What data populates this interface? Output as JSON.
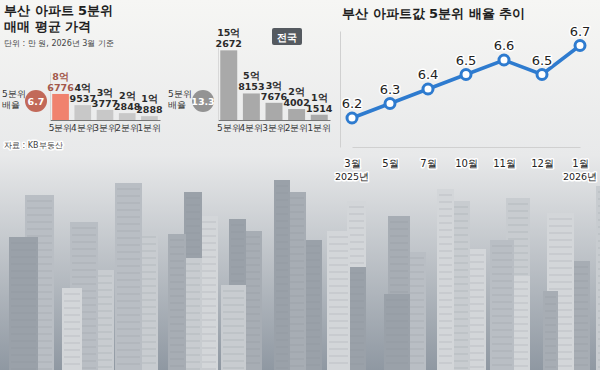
{
  "chart_data": [
    {
      "type": "bar",
      "title": "부산 아파트 5분위 매매 평균 가격",
      "subtitle": "단위 : 만 원, 2026년 3월 기준",
      "source": "자료 : KB부동산",
      "categories": [
        "5분위",
        "4분위",
        "3분위",
        "2분위",
        "1분위"
      ],
      "values": [
        86776,
        49537,
        33777,
        22848,
        12888
      ],
      "value_labels": [
        "8억 6776",
        "4억 9537",
        "3억 3777",
        "2억 2848",
        "1억 2888"
      ],
      "colors": [
        "#f0826e",
        "#c8c8c8",
        "#c8c8c8",
        "#c8c8c8",
        "#c8c8c8"
      ],
      "ylim": [
        0,
        160000
      ],
      "data_labels": true,
      "tick_labels": "x",
      "ratio_label": "5분위 배율",
      "ratio": 6.7
    },
    {
      "type": "bar",
      "title": "전국",
      "categories": [
        "5분위",
        "4분위",
        "3분위",
        "2분위",
        "1분위"
      ],
      "values": [
        152672,
        58153,
        37676,
        24002,
        11514
      ],
      "value_labels": [
        "15억 2672",
        "5억 8153",
        "3억 7676",
        "2억 4002",
        "1억 1514"
      ],
      "color": "#a9a9a9",
      "ylim": [
        0,
        160000
      ],
      "data_labels": true,
      "tick_labels": "x",
      "ratio_label": "5분위 배율",
      "ratio": 13.3
    },
    {
      "type": "line",
      "title": "부산 아파트값 5분위 배율 추이",
      "categories": [
        "3월",
        "5월",
        "7월",
        "10월",
        "11월",
        "12월",
        "1월"
      ],
      "year_labels": [
        "2025년",
        null,
        null,
        null,
        null,
        null,
        "2026년"
      ],
      "values": [
        6.2,
        6.3,
        6.4,
        6.5,
        6.6,
        6.5,
        6.7
      ],
      "color": "#2e7bcf",
      "marker": "circle",
      "ylim": [
        6.0,
        6.8
      ],
      "data_labels": true,
      "tick_labels": "x"
    }
  ]
}
